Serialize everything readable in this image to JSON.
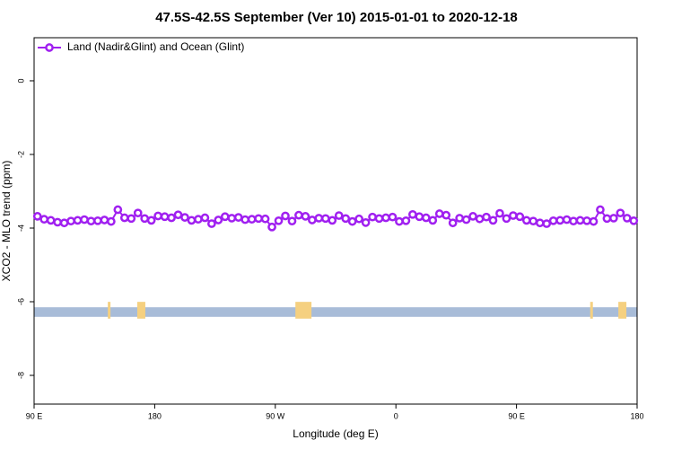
{
  "chart_data": {
    "type": "line",
    "title": "47.5S-42.5S September (Ver 10)   2015-01-01 to 2020-12-18",
    "x_label": "Longitude (deg E)",
    "y_label": "XCO2 - MLO trend (ppm)",
    "xlim": [
      90,
      540
    ],
    "ylim": [
      -8.78,
      1.17
    ],
    "xticks": [
      {
        "value": 90,
        "label": "90 E"
      },
      180,
      {
        "value": 270,
        "label": "90 W"
      },
      {
        "value": 360,
        "label": "0"
      },
      {
        "value": 450,
        "label": "90 E"
      },
      {
        "value": 540,
        "label": "180"
      }
    ],
    "yticks": [
      0,
      -2,
      -4,
      -6,
      -8
    ],
    "legend": "top-left",
    "x": [
      92.5,
      97.5,
      102.5,
      107.5,
      112.5,
      117.5,
      122.5,
      127.5,
      132.5,
      137.5,
      142.5,
      147.5,
      152.5,
      157.5,
      162.5,
      167.5,
      172.5,
      177.5,
      182.5,
      187.5,
      192.5,
      197.5,
      202.5,
      207.5,
      212.5,
      217.5,
      222.5,
      227.5,
      232.5,
      237.5,
      242.5,
      247.5,
      252.5,
      257.5,
      262.5,
      267.5,
      272.5,
      277.5,
      282.5,
      287.5,
      292.5,
      297.5,
      302.5,
      307.5,
      312.5,
      317.5,
      322.5,
      327.5,
      332.5,
      337.5,
      342.5,
      347.5,
      352.5,
      357.5,
      362.5,
      367.5,
      372.5,
      377.5,
      382.5,
      387.5,
      392.5,
      397.5,
      402.5,
      407.5,
      412.5,
      417.5,
      422.5,
      427.5,
      432.5,
      437.5,
      442.5,
      447.5,
      452.5,
      457.5,
      462.5,
      467.5,
      472.5,
      477.5,
      482.5,
      487.5,
      492.5,
      497.5,
      502.5,
      507.5,
      512.5,
      517.5,
      522.5,
      527.5,
      532.5,
      537.5
    ],
    "series": [
      {
        "name": "Land (Nadir&Glint) and Ocean (Glint)",
        "color": "#a020f0",
        "values": [
          -3.68,
          -3.76,
          -3.79,
          -3.84,
          -3.86,
          -3.81,
          -3.79,
          -3.77,
          -3.81,
          -3.8,
          -3.78,
          -3.82,
          -3.5,
          -3.72,
          -3.74,
          -3.59,
          -3.74,
          -3.79,
          -3.67,
          -3.69,
          -3.72,
          -3.64,
          -3.71,
          -3.79,
          -3.76,
          -3.72,
          -3.88,
          -3.78,
          -3.69,
          -3.73,
          -3.71,
          -3.77,
          -3.76,
          -3.74,
          -3.75,
          -3.97,
          -3.8,
          -3.67,
          -3.81,
          -3.65,
          -3.68,
          -3.78,
          -3.73,
          -3.74,
          -3.79,
          -3.66,
          -3.74,
          -3.82,
          -3.75,
          -3.85,
          -3.7,
          -3.74,
          -3.72,
          -3.7,
          -3.82,
          -3.8,
          -3.63,
          -3.69,
          -3.72,
          -3.79,
          -3.61,
          -3.65,
          -3.86,
          -3.73,
          -3.77,
          -3.68,
          -3.75,
          -3.7,
          -3.79,
          -3.6,
          -3.74,
          -3.66,
          -3.69,
          -3.79,
          -3.81,
          -3.86,
          -3.88,
          -3.8,
          -3.79,
          -3.77,
          -3.81,
          -3.79,
          -3.8,
          -3.82,
          -3.5,
          -3.74,
          -3.73,
          -3.59,
          -3.73,
          -3.8
        ]
      }
    ],
    "surface_band": {
      "y": [
        -6.15,
        -6.41
      ],
      "color": "#a8bcd8",
      "land_color": "#f5d080",
      "land": [
        [
          145,
          147
        ],
        [
          167,
          173
        ],
        [
          285,
          297
        ],
        [
          505,
          507
        ],
        [
          526,
          532
        ]
      ]
    }
  }
}
